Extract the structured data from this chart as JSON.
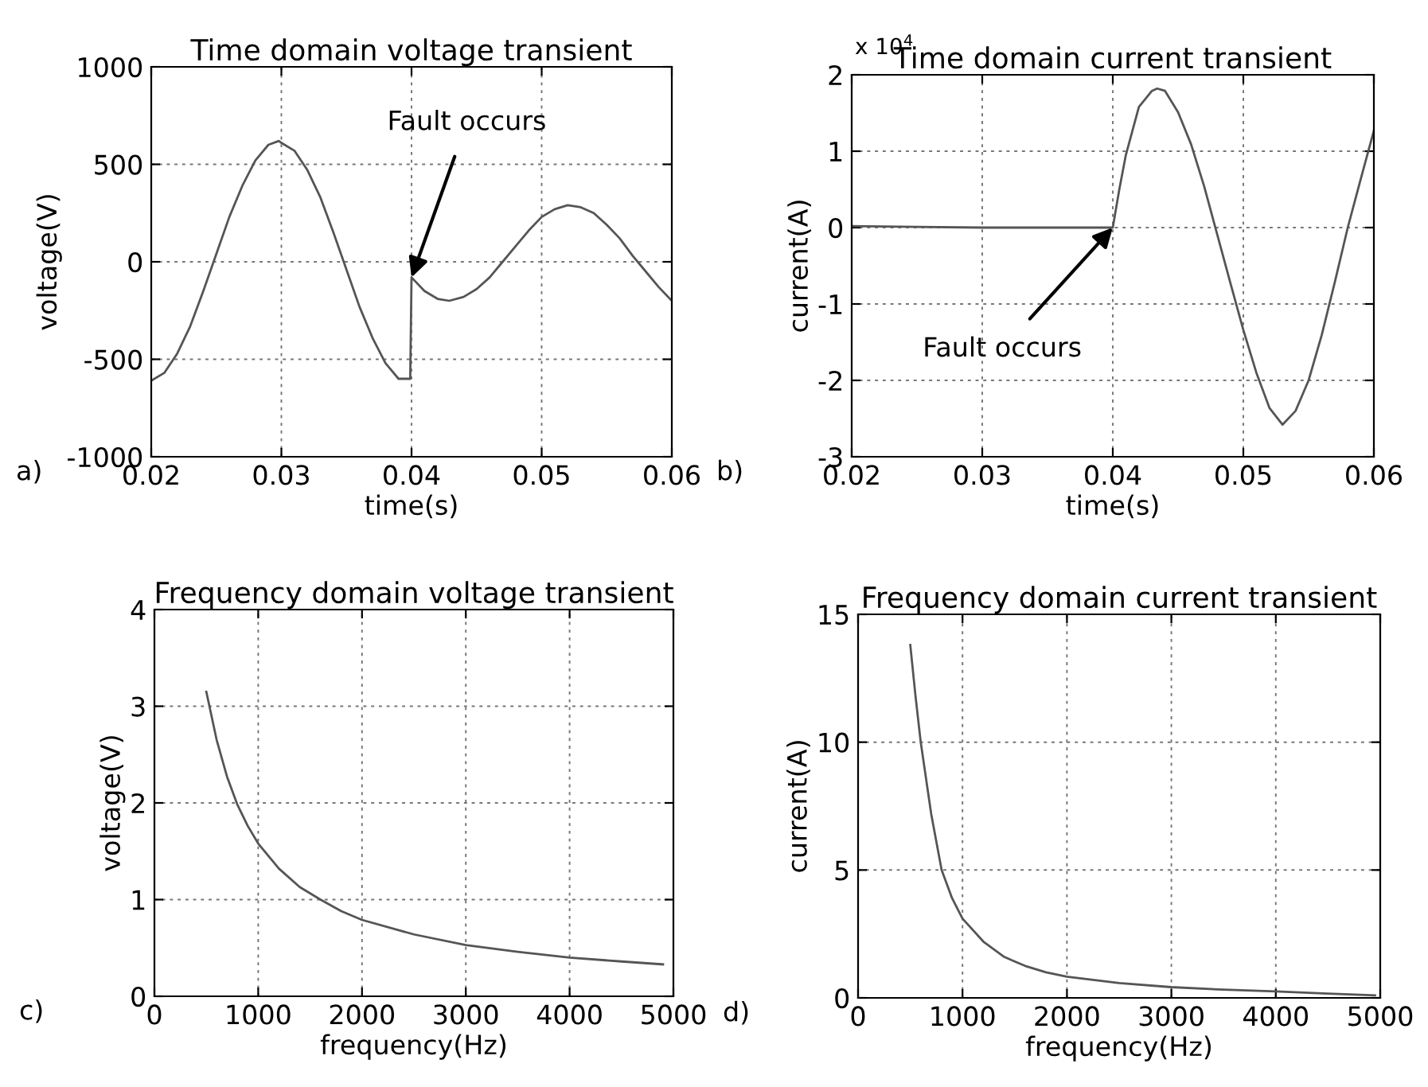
{
  "chart_data": [
    {
      "type": "line",
      "title": "Time domain voltage transient",
      "xlabel": "time(s)",
      "ylabel": "voltage(V)",
      "xlim": [
        0.02,
        0.06
      ],
      "xticks": [
        0.02,
        0.03,
        0.04,
        0.05,
        0.06
      ],
      "ylim": [
        -1000,
        1000
      ],
      "yticks": [
        -1000,
        -500,
        0,
        500,
        1000
      ],
      "grid": true,
      "series": [
        {
          "color": "#555555",
          "x": [
            0.02,
            0.021,
            0.022,
            0.023,
            0.024,
            0.025,
            0.026,
            0.027,
            0.028,
            0.029,
            0.0298,
            0.03,
            0.031,
            0.032,
            0.033,
            0.034,
            0.035,
            0.036,
            0.037,
            0.038,
            0.039,
            0.0399,
            0.04,
            0.041,
            0.042,
            0.0429,
            0.044,
            0.045,
            0.046,
            0.047,
            0.048,
            0.049,
            0.05,
            0.051,
            0.052,
            0.053,
            0.054,
            0.055,
            0.056,
            0.057,
            0.058,
            0.059,
            0.06
          ],
          "values": [
            -610,
            -570,
            -470,
            -330,
            -150,
            40,
            230,
            390,
            520,
            600,
            620,
            610,
            570,
            470,
            330,
            150,
            -40,
            -230,
            -390,
            -520,
            -600,
            -600,
            -80,
            -150,
            -190,
            -200,
            -180,
            -140,
            -80,
            0,
            80,
            160,
            230,
            270,
            290,
            280,
            250,
            190,
            120,
            30,
            -50,
            -130,
            -200
          ]
        }
      ],
      "annotations": [
        {
          "text": "Fault occurs",
          "x": 0.04,
          "y": -80
        },
        "a)"
      ]
    },
    {
      "type": "line",
      "title": "Time domain current transient",
      "xlabel": "time(s)",
      "ylabel": "current(A)",
      "xlim": [
        0.02,
        0.06
      ],
      "xticks": [
        0.02,
        0.03,
        0.04,
        0.05,
        0.06
      ],
      "ylim": [
        -3,
        2
      ],
      "yticks": [
        -3,
        -2,
        -1,
        0,
        1,
        2
      ],
      "grid": true,
      "series": [
        {
          "color": "#555555",
          "x": [
            0.02,
            0.025,
            0.03,
            0.035,
            0.04,
            0.0402,
            0.0405,
            0.041,
            0.042,
            0.043,
            0.0434,
            0.044,
            0.045,
            0.046,
            0.047,
            0.048,
            0.049,
            0.05,
            0.051,
            0.052,
            0.053,
            0.054,
            0.055,
            0.056,
            0.057,
            0.058,
            0.059,
            0.06
          ],
          "values": [
            0.02,
            0.01,
            0,
            0,
            0,
            0.2,
            0.5,
            0.95,
            1.58,
            1.79,
            1.82,
            1.79,
            1.51,
            1.09,
            0.54,
            -0.09,
            -0.72,
            -1.34,
            -1.9,
            -2.36,
            -2.58,
            -2.4,
            -2.0,
            -1.41,
            -0.72,
            0,
            0.64,
            1.27
          ]
        }
      ],
      "annotations": [
        {
          "text": "Fault occurs",
          "x": 0.04,
          "y": 0
        },
        "x 10$^{4}$",
        "b)"
      ]
    },
    {
      "type": "line",
      "title": "Frequency domain voltage transient",
      "xlabel": "frequency(Hz)",
      "ylabel": "voltage(V)",
      "xlim": [
        0,
        5000
      ],
      "xticks": [
        0,
        1000,
        2000,
        3000,
        4000,
        5000
      ],
      "ylim": [
        0,
        4
      ],
      "yticks": [
        0,
        1,
        2,
        3,
        4
      ],
      "grid": true,
      "series": [
        {
          "color": "#555555",
          "x": [
            500,
            600,
            700,
            800,
            900,
            1000,
            1200,
            1400,
            1600,
            1800,
            2000,
            2500,
            3000,
            3500,
            4000,
            4500,
            4900
          ],
          "values": [
            3.15,
            2.65,
            2.27,
            1.98,
            1.76,
            1.58,
            1.32,
            1.13,
            1.0,
            0.88,
            0.79,
            0.64,
            0.53,
            0.46,
            0.4,
            0.36,
            0.33
          ]
        }
      ],
      "annotations": [
        "c)"
      ]
    },
    {
      "type": "line",
      "title": "Frequency domain current transient",
      "xlabel": "frequency(Hz)",
      "ylabel": "current(A)",
      "xlim": [
        0,
        5000
      ],
      "xticks": [
        0,
        1000,
        2000,
        3000,
        4000,
        5000
      ],
      "ylim": [
        0,
        15
      ],
      "yticks": [
        0,
        5,
        10,
        15
      ],
      "grid": true,
      "series": [
        {
          "color": "#555555",
          "x": [
            500,
            550,
            600,
            700,
            800,
            900,
            1000,
            1200,
            1400,
            1600,
            1800,
            2000,
            2500,
            3000,
            3500,
            4000,
            4500,
            4950
          ],
          "values": [
            13.8,
            11.8,
            10.0,
            7.2,
            5.0,
            3.9,
            3.1,
            2.2,
            1.6,
            1.25,
            1.0,
            0.83,
            0.58,
            0.42,
            0.32,
            0.25,
            0.17,
            0.1
          ]
        }
      ],
      "annotations": [
        "d)"
      ]
    }
  ]
}
